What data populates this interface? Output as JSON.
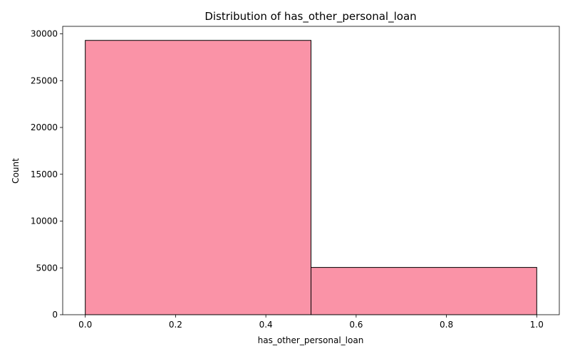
{
  "chart_data": {
    "type": "bar",
    "title": "Distribution of has_other_personal_loan",
    "xlabel": "has_other_personal_loan",
    "ylabel": "Count",
    "bins": [
      {
        "x0": 0.0,
        "x1": 0.5,
        "count": 29300
      },
      {
        "x0": 0.5,
        "x1": 1.0,
        "count": 5050
      }
    ],
    "xlim": [
      -0.05,
      1.05
    ],
    "ylim": [
      0,
      30800
    ],
    "xticks": [
      0.0,
      0.2,
      0.4,
      0.6,
      0.8,
      1.0
    ],
    "xtick_labels": [
      "0.0",
      "0.2",
      "0.4",
      "0.6",
      "0.8",
      "1.0"
    ],
    "yticks": [
      0,
      5000,
      10000,
      15000,
      20000,
      25000,
      30000
    ],
    "ytick_labels": [
      "0",
      "5000",
      "10000",
      "15000",
      "20000",
      "25000",
      "30000"
    ],
    "bar_color": "#fa93a7",
    "edge_color": "#000000",
    "grid": false
  }
}
